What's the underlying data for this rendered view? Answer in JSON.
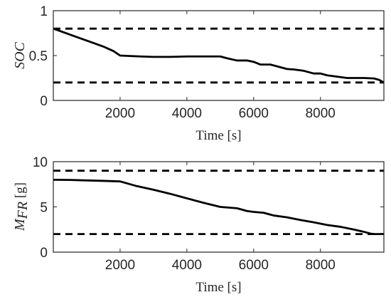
{
  "chart_data": [
    {
      "type": "line",
      "xlabel": "Time [s]",
      "ylabel": "SOC",
      "xlim": [
        0,
        9900
      ],
      "ylim": [
        0,
        1
      ],
      "xticks": [
        2000,
        4000,
        6000,
        8000
      ],
      "xtick_labels": [
        "2000",
        "4000",
        "6000",
        "8000"
      ],
      "yticks": [
        0,
        0.5,
        1
      ],
      "ytick_labels": [
        "0",
        "0.5",
        "1"
      ],
      "grid": false,
      "series": [
        {
          "style": "solid",
          "x": [
            0,
            300,
            600,
            900,
            1200,
            1500,
            1800,
            2000,
            2300,
            2600,
            3000,
            3500,
            4000,
            4500,
            5000,
            5200,
            5500,
            5800,
            6000,
            6200,
            6500,
            6800,
            7000,
            7200,
            7500,
            7800,
            8000,
            8200,
            8500,
            8800,
            9000,
            9300,
            9600,
            9750,
            9900
          ],
          "y": [
            0.8,
            0.76,
            0.72,
            0.68,
            0.64,
            0.6,
            0.55,
            0.5,
            0.495,
            0.49,
            0.485,
            0.485,
            0.49,
            0.49,
            0.49,
            0.47,
            0.445,
            0.445,
            0.43,
            0.4,
            0.4,
            0.37,
            0.35,
            0.345,
            0.33,
            0.3,
            0.3,
            0.28,
            0.265,
            0.25,
            0.25,
            0.25,
            0.245,
            0.23,
            0.2
          ]
        },
        {
          "style": "dashed",
          "x": [
            0,
            9900
          ],
          "y": [
            0.8,
            0.8
          ]
        },
        {
          "style": "dashed",
          "x": [
            0,
            9900
          ],
          "y": [
            0.2,
            0.2
          ]
        }
      ]
    },
    {
      "type": "line",
      "xlabel": "Time [s]",
      "ylabel": "M",
      "ylabel_sub": "FR",
      "ylabel_unit": " [g]",
      "xlim": [
        0,
        9900
      ],
      "ylim": [
        0,
        10
      ],
      "xticks": [
        2000,
        4000,
        6000,
        8000
      ],
      "xtick_labels": [
        "2000",
        "4000",
        "6000",
        "8000"
      ],
      "yticks": [
        0,
        5,
        10
      ],
      "ytick_labels": [
        "0",
        "5",
        "10"
      ],
      "grid": false,
      "series": [
        {
          "style": "solid",
          "x": [
            0,
            500,
            1000,
            1500,
            2000,
            2500,
            3000,
            3500,
            4000,
            4500,
            5000,
            5500,
            5800,
            6000,
            6300,
            6600,
            7000,
            7400,
            7800,
            8200,
            8600,
            9000,
            9300,
            9500,
            9600,
            9700,
            9900
          ],
          "y": [
            8.0,
            7.98,
            7.93,
            7.88,
            7.82,
            7.3,
            6.9,
            6.45,
            5.95,
            5.45,
            5.0,
            4.85,
            4.55,
            4.45,
            4.35,
            4.05,
            3.85,
            3.55,
            3.3,
            3.0,
            2.8,
            2.5,
            2.25,
            2.05,
            2.0,
            2.0,
            2.0
          ]
        },
        {
          "style": "dashed",
          "x": [
            0,
            9900
          ],
          "y": [
            9,
            9
          ]
        },
        {
          "style": "dashed",
          "x": [
            0,
            9900
          ],
          "y": [
            2,
            2
          ]
        }
      ]
    }
  ]
}
